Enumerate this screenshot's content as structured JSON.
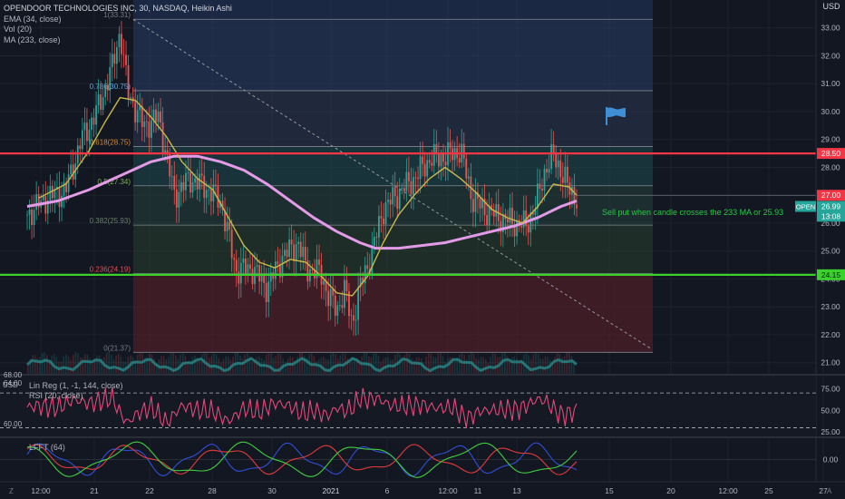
{
  "legend": {
    "symbol": "OPENDOOR TECHNOLOGIES INC, 30, NASDAQ, Heikin Ashi",
    "ema": "EMA (34, close)",
    "vol": "Vol (20)",
    "ma": "MA (233, close)"
  },
  "pane2_legend": {
    "linreg": "Lin Reg (1, -1, 144, close)",
    "rsi": "RSI (20, close)"
  },
  "pane3_legend": {
    "lfft": "LFFT (64)"
  },
  "currency": "USD",
  "currency_pane2": "USD",
  "corner_left": "Z",
  "corner_right": "A",
  "annotation": "Sell put when candle crosses the 233 MA or 25.93",
  "colors": {
    "background": "#131722",
    "grid": "#1e222d",
    "red_line": "#f23645",
    "green_line": "#39d12a",
    "ema": "#c9b84a",
    "ma": "#e39be8",
    "rsi": "#e3487a",
    "up_candle": "#26a69a",
    "down_candle": "#ef5350",
    "flag": "#3f8fd6",
    "annotation_text": "#26c940"
  },
  "price_tags": [
    {
      "value": "28.50",
      "bg": "#f23645",
      "fg": "#ffffff"
    },
    {
      "value": "27.00",
      "bg": "#f23645",
      "fg": "#ffffff"
    },
    {
      "value": "26.99",
      "bg": "#26a69a",
      "fg": "#ffffff",
      "label": "OPEN"
    },
    {
      "value": "13:08",
      "bg": "#26a69a",
      "fg": "#ffffff"
    },
    {
      "value": "24.15",
      "bg": "#39d12a",
      "fg": "#131722"
    }
  ],
  "pane2_tags": [
    {
      "value": "68.00",
      "position": "top"
    },
    {
      "value": "64.00"
    },
    {
      "value": "60.00"
    }
  ],
  "chart_data": {
    "type": "candlestick",
    "title": "OPENDOOR TECHNOLOGIES INC, 30, NASDAQ, Heikin Ashi",
    "ylim": [
      20.6,
      34.0
    ],
    "y_ticks": [
      21.0,
      22.0,
      23.0,
      24.0,
      25.0,
      26.0,
      27.0,
      28.0,
      29.0,
      30.0,
      31.0,
      32.0,
      33.0
    ],
    "x_ticks": [
      "12:00",
      "21",
      "22",
      "28",
      "30",
      "2021",
      "6",
      "12:00",
      "11",
      "13",
      "15",
      "20",
      "12:00",
      "25",
      "27"
    ],
    "horizontal_lines": [
      {
        "name": "resistance",
        "value": 28.5,
        "color": "#f23645"
      },
      {
        "name": "support",
        "value": 24.15,
        "color": "#39d12a"
      }
    ],
    "fibonacci": {
      "levels": [
        {
          "label": "1(33.31)",
          "ratio": "1",
          "value": 33.31
        },
        {
          "label": "0.786(30.75)",
          "ratio": "0.786",
          "value": 30.75
        },
        {
          "label": "0.618(28.75)",
          "ratio": "0.618",
          "value": 28.75
        },
        {
          "label": "0.5(27.34)",
          "ratio": "0.5",
          "value": 27.34
        },
        {
          "label": "0.382(25.93)",
          "ratio": "0.382",
          "value": 25.93
        },
        {
          "label": "0.236(24.19)",
          "ratio": "0.236",
          "value": 24.19
        },
        {
          "label": "0(21.37)",
          "ratio": "0",
          "value": 21.37
        }
      ]
    },
    "trend_line": {
      "from": 33.3,
      "to": 21.5
    },
    "price_waypoints": [
      [
        0,
        26.3
      ],
      [
        5,
        26.9
      ],
      [
        10,
        27.2
      ],
      [
        14,
        29.0
      ],
      [
        18,
        30.0
      ],
      [
        22,
        31.6
      ],
      [
        24,
        32.9
      ],
      [
        26,
        30.7
      ],
      [
        30,
        29.5
      ],
      [
        34,
        29.8
      ],
      [
        38,
        27.0
      ],
      [
        42,
        27.6
      ],
      [
        46,
        27.3
      ],
      [
        50,
        26.8
      ],
      [
        54,
        24.3
      ],
      [
        58,
        24.4
      ],
      [
        62,
        23.7
      ],
      [
        66,
        24.8
      ],
      [
        70,
        25.3
      ],
      [
        72,
        24.4
      ],
      [
        76,
        24.2
      ],
      [
        78,
        23.3
      ],
      [
        80,
        22.9
      ],
      [
        82,
        23.6
      ],
      [
        84,
        22.4
      ],
      [
        86,
        23.7
      ],
      [
        89,
        24.9
      ],
      [
        92,
        26.5
      ],
      [
        96,
        27.1
      ],
      [
        100,
        27.6
      ],
      [
        104,
        28.3
      ],
      [
        108,
        28.4
      ],
      [
        112,
        28.6
      ],
      [
        115,
        26.9
      ],
      [
        118,
        26.5
      ],
      [
        122,
        26.2
      ],
      [
        126,
        26.0
      ],
      [
        129,
        25.9
      ],
      [
        132,
        26.9
      ],
      [
        134,
        28.0
      ],
      [
        136,
        28.4
      ],
      [
        138,
        27.9
      ],
      [
        140,
        27.2
      ],
      [
        142,
        26.9
      ]
    ],
    "ema_34": [
      [
        3,
        26.9
      ],
      [
        10,
        27.4
      ],
      [
        16,
        28.6
      ],
      [
        20,
        29.6
      ],
      [
        24,
        30.5
      ],
      [
        28,
        30.4
      ],
      [
        32,
        29.8
      ],
      [
        36,
        29.1
      ],
      [
        40,
        28.2
      ],
      [
        44,
        27.6
      ],
      [
        48,
        27.2
      ],
      [
        52,
        26.2
      ],
      [
        56,
        25.2
      ],
      [
        60,
        24.6
      ],
      [
        64,
        24.4
      ],
      [
        68,
        24.7
      ],
      [
        72,
        24.6
      ],
      [
        76,
        24.1
      ],
      [
        80,
        23.5
      ],
      [
        84,
        23.4
      ],
      [
        88,
        24.1
      ],
      [
        92,
        25.3
      ],
      [
        96,
        26.3
      ],
      [
        100,
        27.0
      ],
      [
        104,
        27.6
      ],
      [
        108,
        28.0
      ],
      [
        112,
        27.6
      ],
      [
        116,
        27.1
      ],
      [
        120,
        26.5
      ],
      [
        124,
        26.2
      ],
      [
        128,
        26.0
      ],
      [
        132,
        26.6
      ],
      [
        136,
        27.4
      ],
      [
        140,
        27.3
      ],
      [
        142,
        27.0
      ]
    ],
    "ma_233": [
      [
        0,
        26.6
      ],
      [
        8,
        26.8
      ],
      [
        16,
        27.2
      ],
      [
        24,
        27.7
      ],
      [
        32,
        28.2
      ],
      [
        38,
        28.4
      ],
      [
        44,
        28.4
      ],
      [
        50,
        28.2
      ],
      [
        56,
        27.9
      ],
      [
        62,
        27.4
      ],
      [
        68,
        26.8
      ],
      [
        74,
        26.2
      ],
      [
        80,
        25.7
      ],
      [
        86,
        25.3
      ],
      [
        90,
        25.1
      ],
      [
        96,
        25.1
      ],
      [
        102,
        25.2
      ],
      [
        108,
        25.3
      ],
      [
        114,
        25.5
      ],
      [
        120,
        25.7
      ],
      [
        126,
        25.9
      ],
      [
        132,
        26.2
      ],
      [
        138,
        26.6
      ],
      [
        142,
        26.8
      ]
    ],
    "rsi_20": {
      "ylim": [
        20,
        90
      ],
      "ticks": [
        25.0,
        50.0,
        75.0
      ],
      "levels": [
        70,
        30
      ]
    },
    "lfft_64": {
      "ylim": [
        -1.4,
        1.4
      ],
      "ticks": [
        0.0
      ]
    }
  }
}
